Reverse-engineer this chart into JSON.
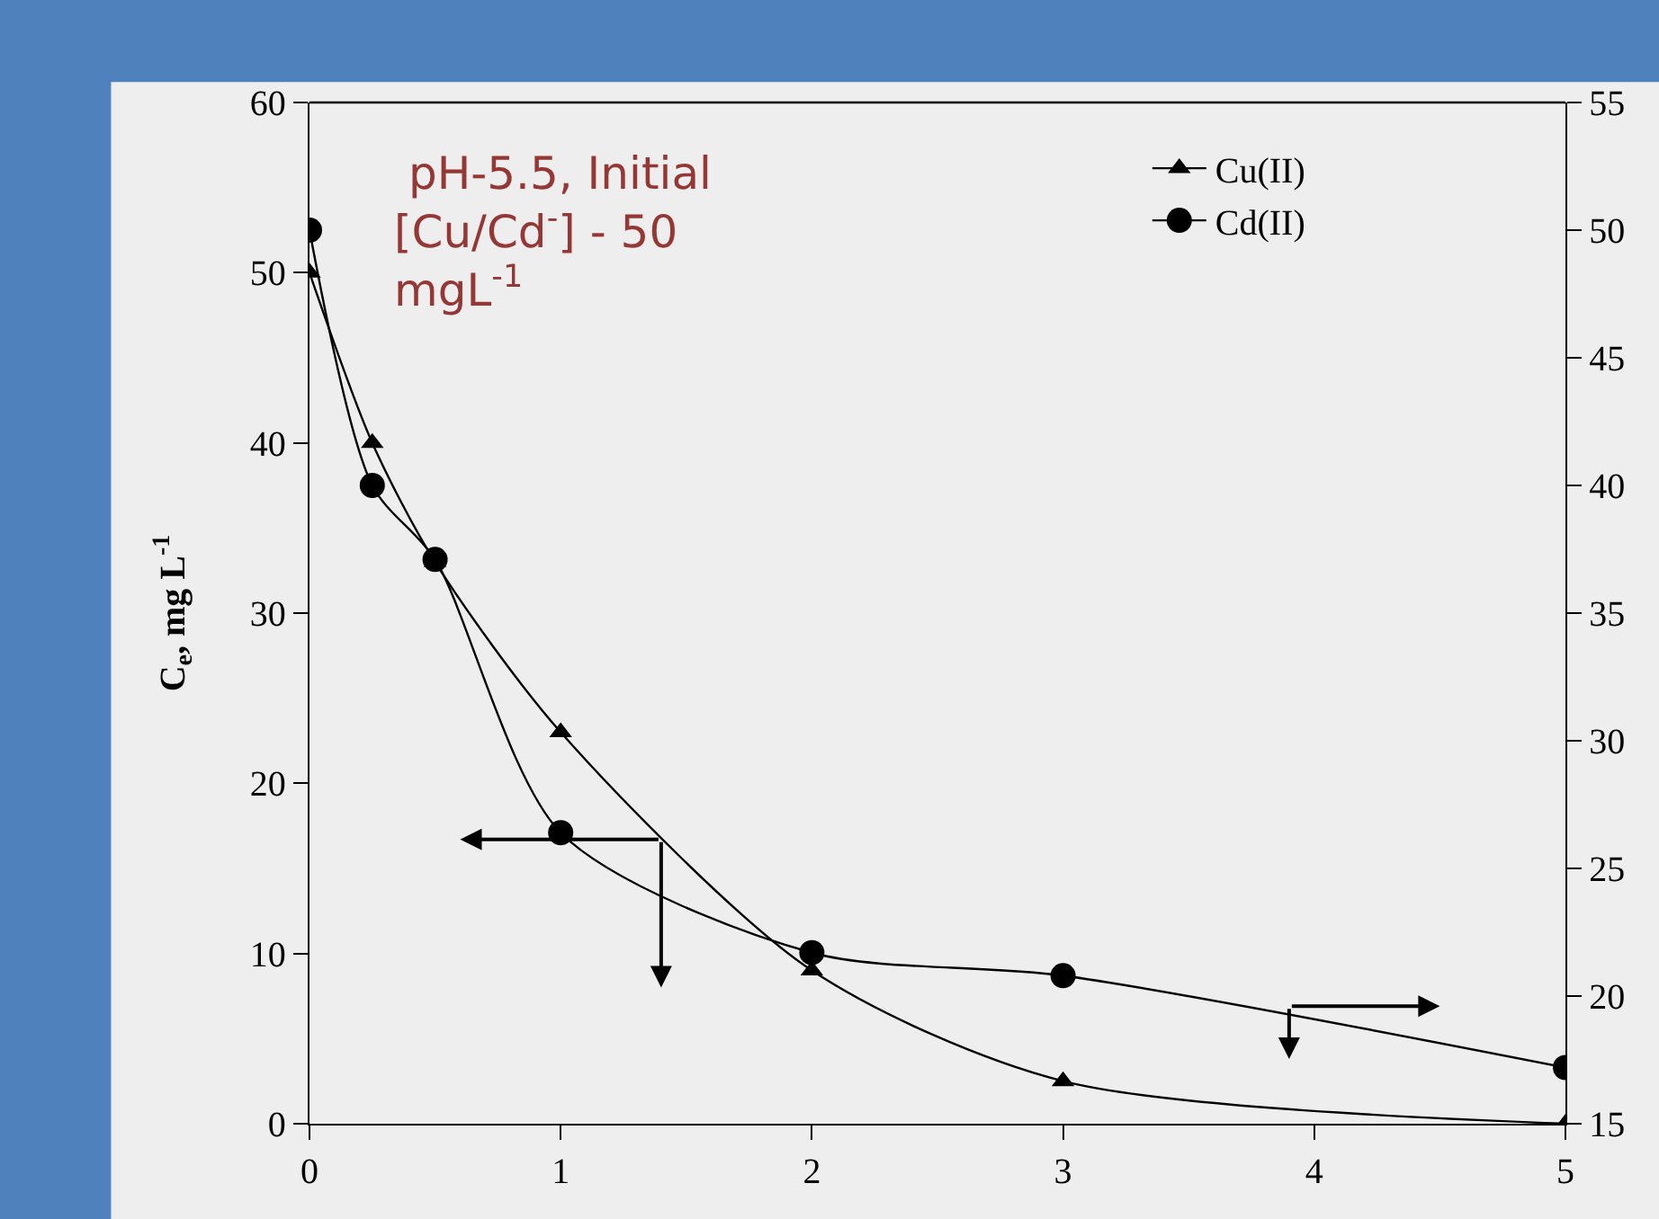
{
  "chart_data": {
    "type": "line",
    "ylabel": "C$_{e}$, mg L$^{-1}$",
    "annotations": [
      " pH-5.5, Initial\n[Cu/Cd$^{-}$] - 50\nmgL$^{-1}$"
    ],
    "x": [
      0,
      0.25,
      0.5,
      1,
      2,
      3,
      5
    ],
    "series": [
      {
        "name": "Cu(II)",
        "color": "#000000",
        "marker": "triangle",
        "values": [
          50,
          40,
          33,
          23,
          9,
          2.5,
          0
        ]
      },
      {
        "name": "Cd(II)",
        "color": "#000000",
        "marker": "circle",
        "axis": "y2",
        "values": [
          50,
          40,
          37.1,
          26.4,
          21.7,
          20.8,
          17.2
        ]
      }
    ],
    "xlim": [
      0,
      5
    ],
    "xticks": [
      0,
      1,
      2,
      3,
      4,
      5
    ],
    "ylim": [
      0,
      60
    ],
    "yticks": [
      0,
      10,
      20,
      30,
      40,
      50,
      60
    ],
    "y2lim": [
      15,
      55
    ],
    "y2ticks": [
      15,
      20,
      25,
      30,
      35,
      40,
      45,
      50,
      55
    ],
    "grid": false,
    "legend": "top right"
  }
}
